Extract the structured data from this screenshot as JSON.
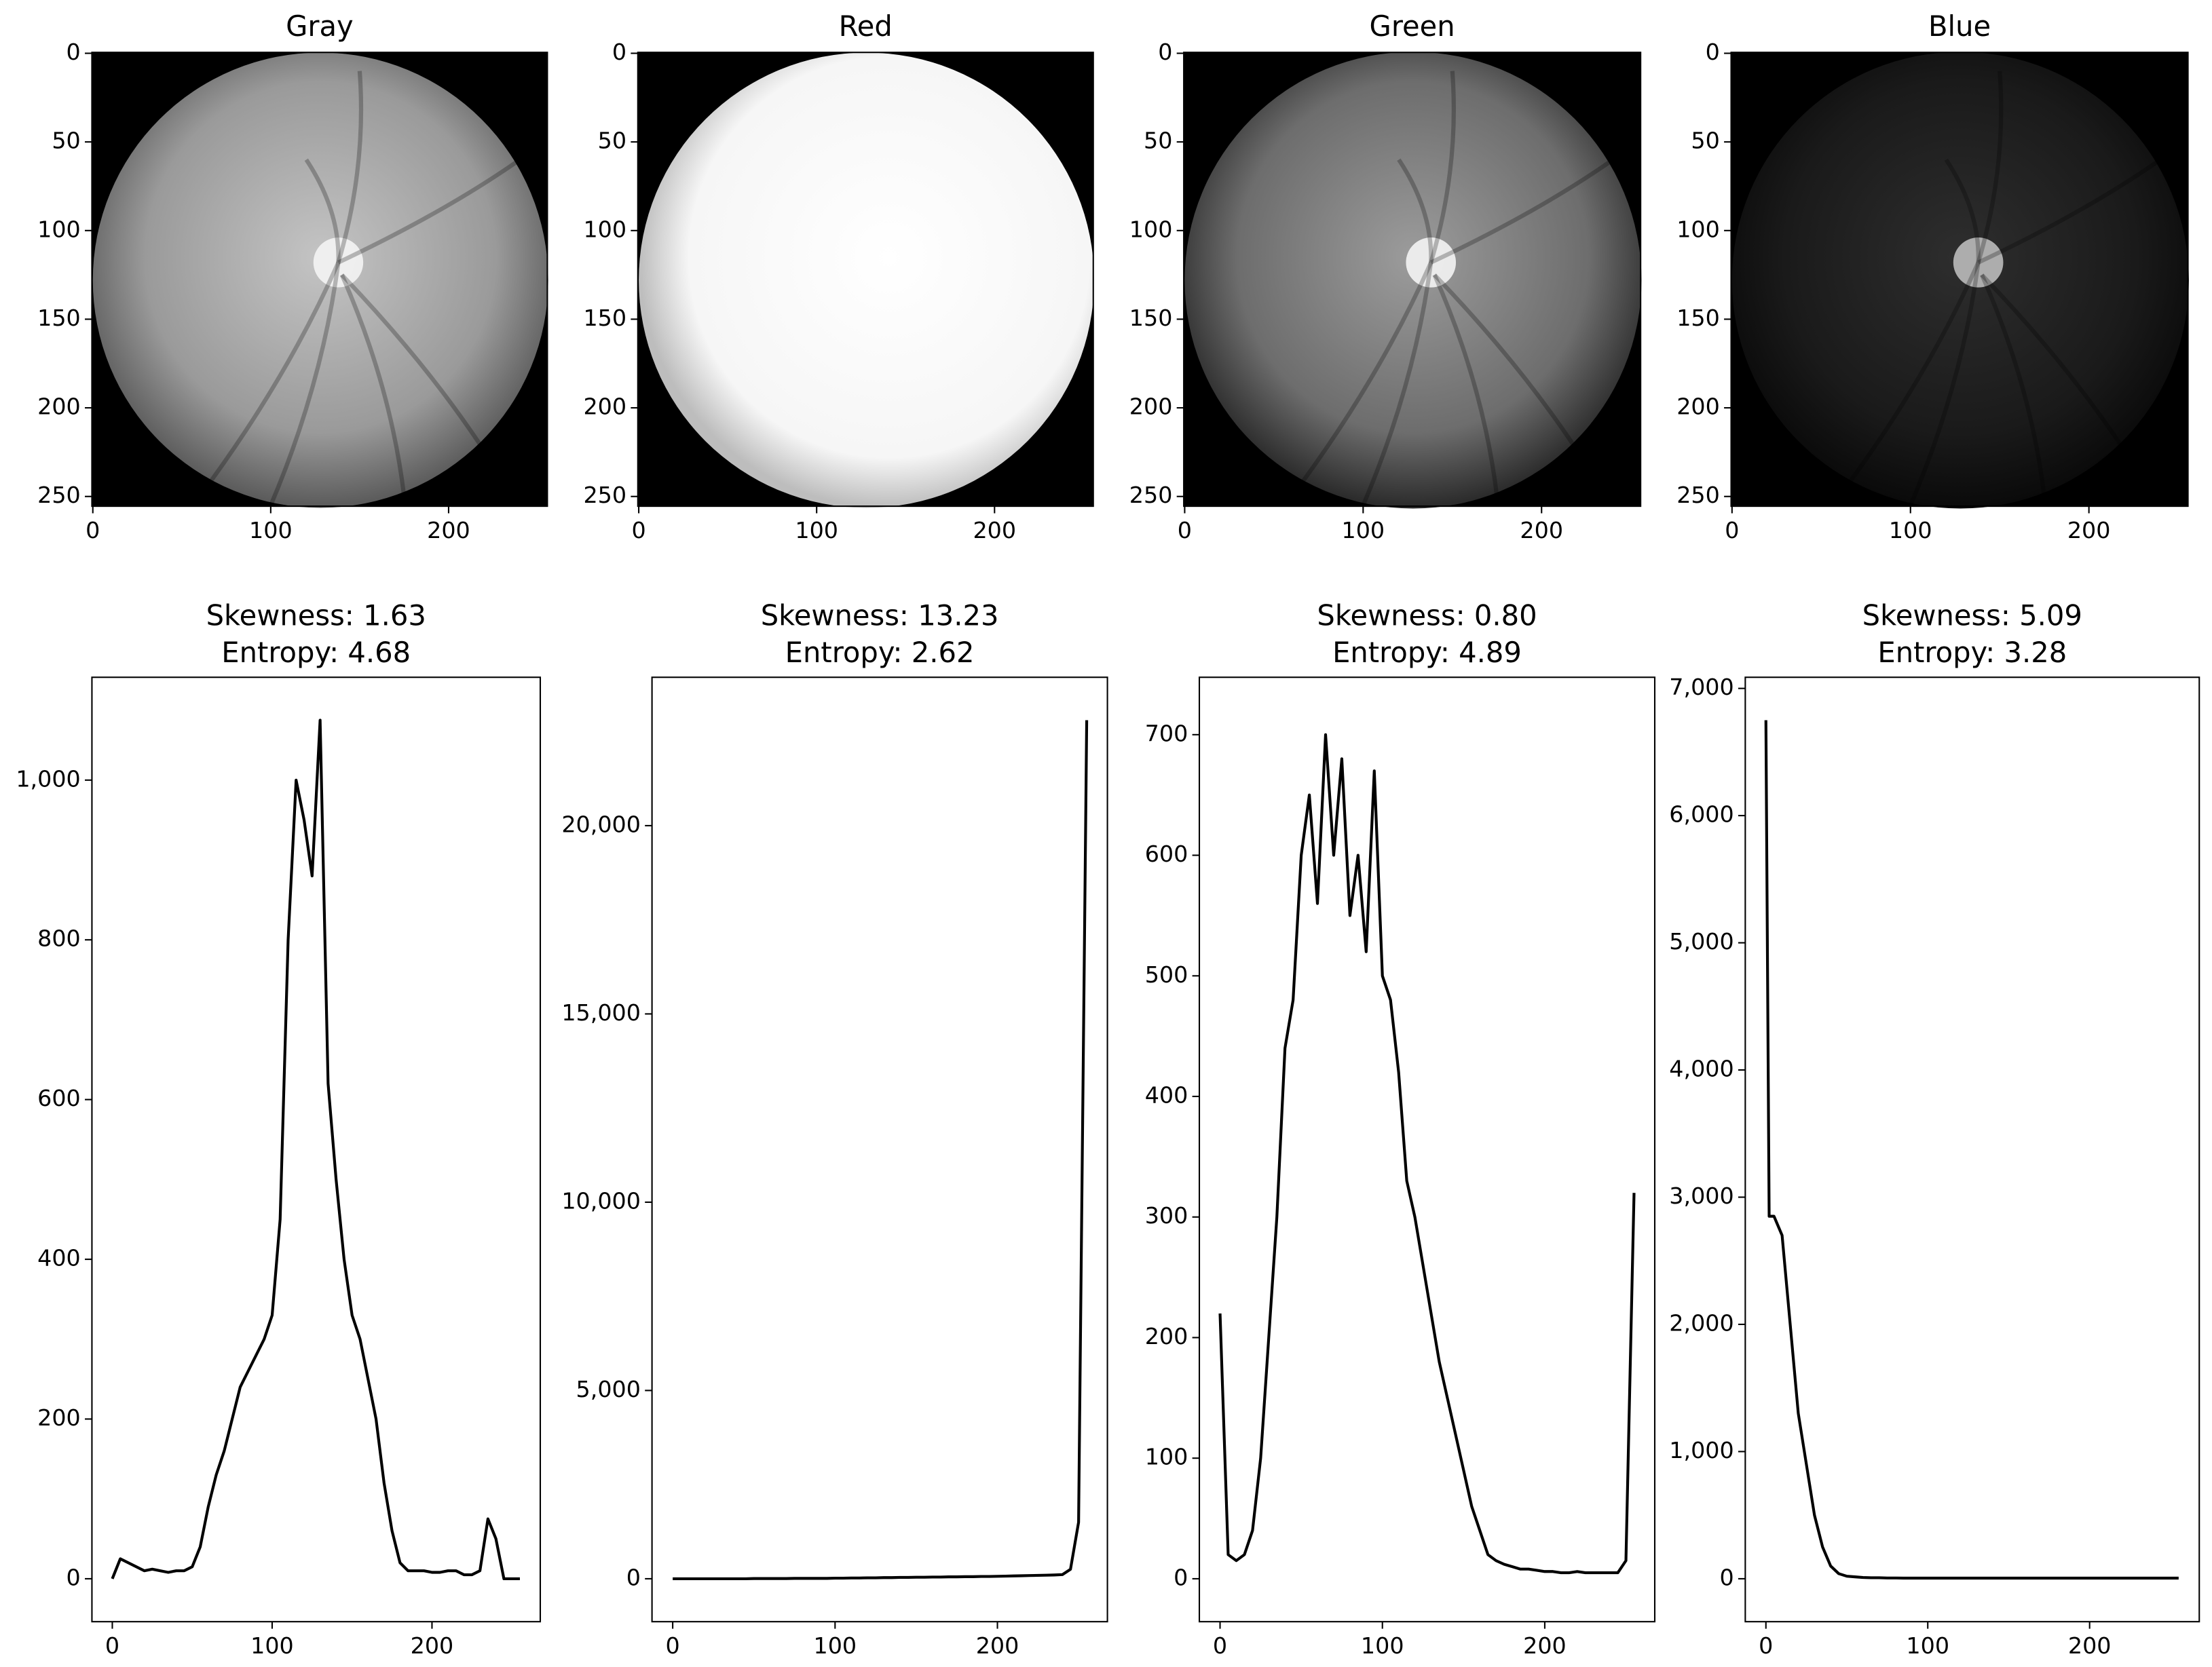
{
  "chart_data": [
    {
      "type": "image",
      "title": "Gray",
      "xlim": [
        -0.5,
        255.5
      ],
      "ylim": [
        255.5,
        -0.5
      ],
      "xticks": [
        0,
        100,
        200
      ],
      "yticks": [
        0,
        50,
        100,
        150,
        200,
        250
      ]
    },
    {
      "type": "image",
      "title": "Red",
      "xlim": [
        -0.5,
        255.5
      ],
      "ylim": [
        255.5,
        -0.5
      ],
      "xticks": [
        0,
        100,
        200
      ],
      "yticks": [
        0,
        50,
        100,
        150,
        200,
        250
      ]
    },
    {
      "type": "image",
      "title": "Green",
      "xlim": [
        -0.5,
        255.5
      ],
      "ylim": [
        255.5,
        -0.5
      ],
      "xticks": [
        0,
        100,
        200
      ],
      "yticks": [
        0,
        50,
        100,
        150,
        200,
        250
      ]
    },
    {
      "type": "image",
      "title": "Blue",
      "xlim": [
        -0.5,
        255.5
      ],
      "ylim": [
        255.5,
        -0.5
      ],
      "xticks": [
        0,
        100,
        200
      ],
      "yticks": [
        0,
        50,
        100,
        150,
        200,
        250
      ]
    },
    {
      "type": "line",
      "title": "Skewness: 1.63",
      "subtitle": "Entropy: 4.68",
      "color": "#000000",
      "xlim": [
        -12.75,
        267.75
      ],
      "ylim": [
        -53.75,
        1128.75
      ],
      "xticks": [
        0,
        100,
        200
      ],
      "yticks": [
        0,
        200,
        400,
        600,
        800,
        {
          "value": 1000,
          "label": "1,000"
        }
      ],
      "x": [
        0,
        5,
        10,
        15,
        20,
        25,
        30,
        35,
        40,
        45,
        50,
        55,
        60,
        65,
        70,
        75,
        80,
        85,
        90,
        95,
        100,
        105,
        110,
        115,
        120,
        125,
        130,
        135,
        140,
        145,
        150,
        155,
        160,
        165,
        170,
        175,
        180,
        185,
        190,
        195,
        200,
        205,
        210,
        215,
        220,
        225,
        230,
        235,
        240,
        245,
        250,
        255
      ],
      "values": [
        0,
        25,
        20,
        15,
        10,
        12,
        10,
        8,
        10,
        10,
        15,
        40,
        90,
        130,
        160,
        200,
        240,
        260,
        280,
        300,
        330,
        450,
        800,
        1000,
        950,
        880,
        1075,
        620,
        500,
        400,
        330,
        300,
        250,
        200,
        120,
        60,
        20,
        10,
        10,
        10,
        8,
        8,
        10,
        10,
        5,
        5,
        10,
        75,
        50,
        0,
        0,
        0
      ]
    },
    {
      "type": "line",
      "title": "Skewness: 13.23",
      "subtitle": "Entropy: 2.62",
      "color": "#000000",
      "xlim": [
        -12.75,
        267.75
      ],
      "ylim": [
        -1140,
        23940
      ],
      "xticks": [
        0,
        100,
        200
      ],
      "yticks": [
        0,
        {
          "value": 5000,
          "label": "5,000"
        },
        {
          "value": 10000,
          "label": "10,000"
        },
        {
          "value": 15000,
          "label": "15,000"
        },
        {
          "value": 20000,
          "label": "20,000"
        }
      ],
      "x": [
        0,
        5,
        10,
        15,
        20,
        25,
        30,
        35,
        40,
        45,
        50,
        55,
        60,
        65,
        70,
        75,
        80,
        85,
        90,
        95,
        100,
        105,
        110,
        115,
        120,
        125,
        130,
        135,
        140,
        145,
        150,
        155,
        160,
        165,
        170,
        175,
        180,
        185,
        190,
        195,
        200,
        205,
        210,
        215,
        220,
        225,
        230,
        235,
        240,
        245,
        250,
        255
      ],
      "values": [
        0,
        0,
        0,
        0,
        0,
        0,
        0,
        0,
        0,
        0,
        5,
        5,
        5,
        5,
        5,
        10,
        10,
        10,
        10,
        10,
        15,
        15,
        20,
        20,
        25,
        25,
        30,
        30,
        35,
        35,
        40,
        40,
        45,
        45,
        50,
        50,
        55,
        55,
        60,
        60,
        65,
        70,
        75,
        80,
        85,
        90,
        95,
        100,
        110,
        250,
        1500,
        22800
      ]
    },
    {
      "type": "line",
      "title": "Skewness: 0.80",
      "subtitle": "Entropy: 4.89",
      "color": "#000000",
      "xlim": [
        -12.75,
        267.75
      ],
      "ylim": [
        -35.6,
        747.6
      ],
      "xticks": [
        0,
        100,
        200
      ],
      "yticks": [
        0,
        100,
        200,
        300,
        400,
        500,
        600,
        700
      ],
      "x": [
        0,
        5,
        10,
        15,
        20,
        25,
        30,
        35,
        40,
        45,
        50,
        55,
        60,
        65,
        70,
        75,
        80,
        85,
        90,
        95,
        100,
        105,
        110,
        115,
        120,
        125,
        130,
        135,
        140,
        145,
        150,
        155,
        160,
        165,
        170,
        175,
        180,
        185,
        190,
        195,
        200,
        205,
        210,
        215,
        220,
        225,
        230,
        235,
        240,
        245,
        250,
        255
      ],
      "values": [
        220,
        20,
        15,
        20,
        40,
        100,
        200,
        300,
        440,
        480,
        600,
        650,
        560,
        700,
        600,
        680,
        550,
        600,
        520,
        670,
        500,
        480,
        420,
        330,
        300,
        260,
        220,
        180,
        150,
        120,
        90,
        60,
        40,
        20,
        15,
        12,
        10,
        8,
        8,
        7,
        6,
        6,
        5,
        5,
        6,
        5,
        5,
        5,
        5,
        5,
        15,
        320
      ]
    },
    {
      "type": "line",
      "title": "Skewness: 5.09",
      "subtitle": "Entropy: 3.28",
      "color": "#000000",
      "xlim": [
        -12.75,
        267.75
      ],
      "ylim": [
        -337.5,
        7087.5
      ],
      "xticks": [
        0,
        100,
        200
      ],
      "yticks": [
        0,
        {
          "value": 1000,
          "label": "1,000"
        },
        {
          "value": 2000,
          "label": "2,000"
        },
        {
          "value": 3000,
          "label": "3,000"
        },
        {
          "value": 4000,
          "label": "4,000"
        },
        {
          "value": 5000,
          "label": "5,000"
        },
        {
          "value": 6000,
          "label": "6,000"
        },
        {
          "value": 7000,
          "label": "7,000"
        }
      ],
      "x": [
        0,
        2,
        5,
        10,
        15,
        20,
        25,
        30,
        35,
        40,
        45,
        50,
        55,
        60,
        65,
        70,
        75,
        80,
        85,
        90,
        95,
        100,
        105,
        110,
        115,
        120,
        125,
        130,
        135,
        140,
        145,
        150,
        155,
        160,
        165,
        170,
        175,
        180,
        185,
        190,
        195,
        200,
        205,
        210,
        215,
        220,
        225,
        230,
        235,
        240,
        245,
        250,
        255
      ],
      "values": [
        6750,
        2850,
        2850,
        2700,
        2000,
        1300,
        900,
        500,
        250,
        100,
        40,
        20,
        15,
        10,
        8,
        8,
        6,
        6,
        5,
        5,
        5,
        5,
        5,
        5,
        5,
        5,
        5,
        5,
        5,
        5,
        5,
        5,
        5,
        5,
        5,
        5,
        5,
        5,
        5,
        5,
        5,
        5,
        5,
        5,
        5,
        5,
        5,
        5,
        5,
        5,
        5,
        5,
        5
      ]
    }
  ]
}
